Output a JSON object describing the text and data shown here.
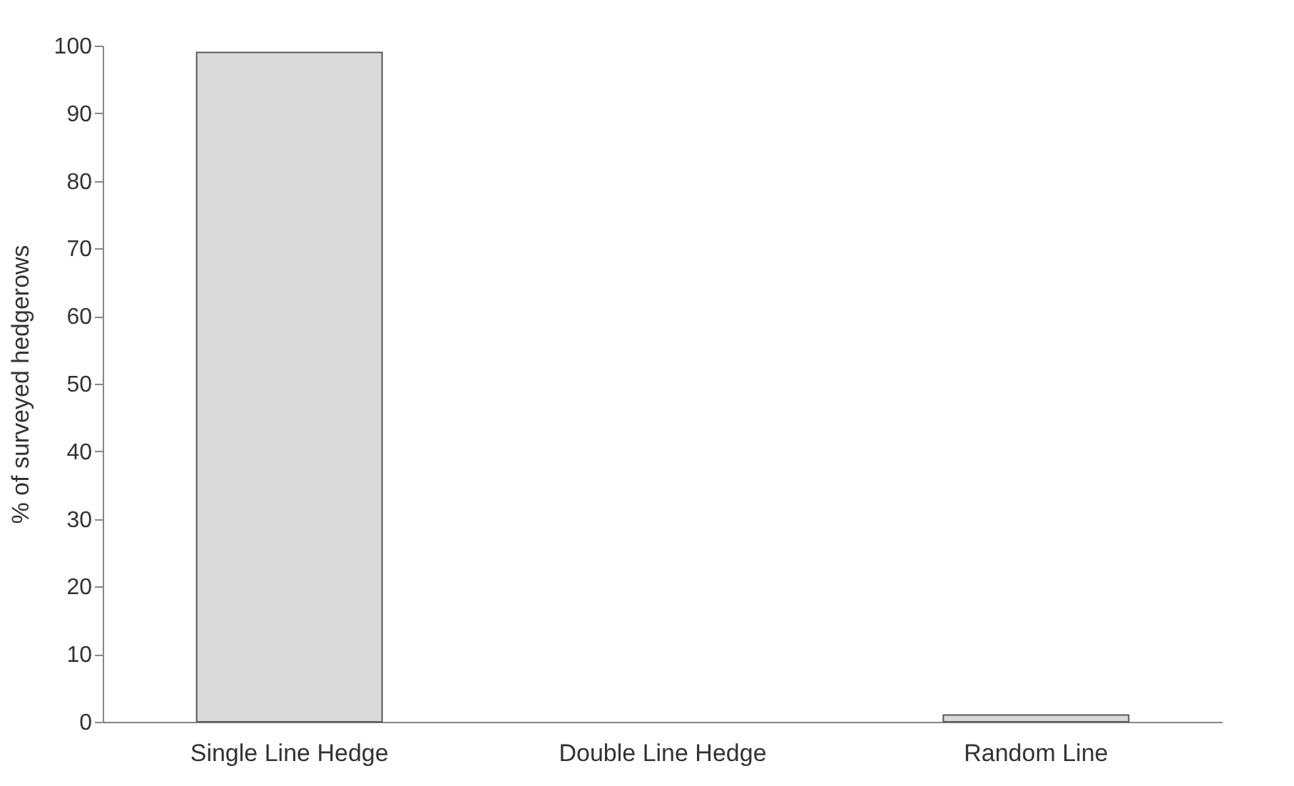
{
  "chart_data": {
    "type": "bar",
    "ylabel": "% of surveyed hedgerows",
    "categories": [
      "Single Line Hedge",
      "Double Line Hedge",
      "Random Line"
    ],
    "values": [
      99,
      0,
      1
    ],
    "color": "#d9d9d9",
    "ylim": [
      0,
      100
    ],
    "yticks": [
      0,
      10,
      20,
      30,
      40,
      50,
      60,
      70,
      80,
      90,
      100
    ],
    "grid": false
  }
}
